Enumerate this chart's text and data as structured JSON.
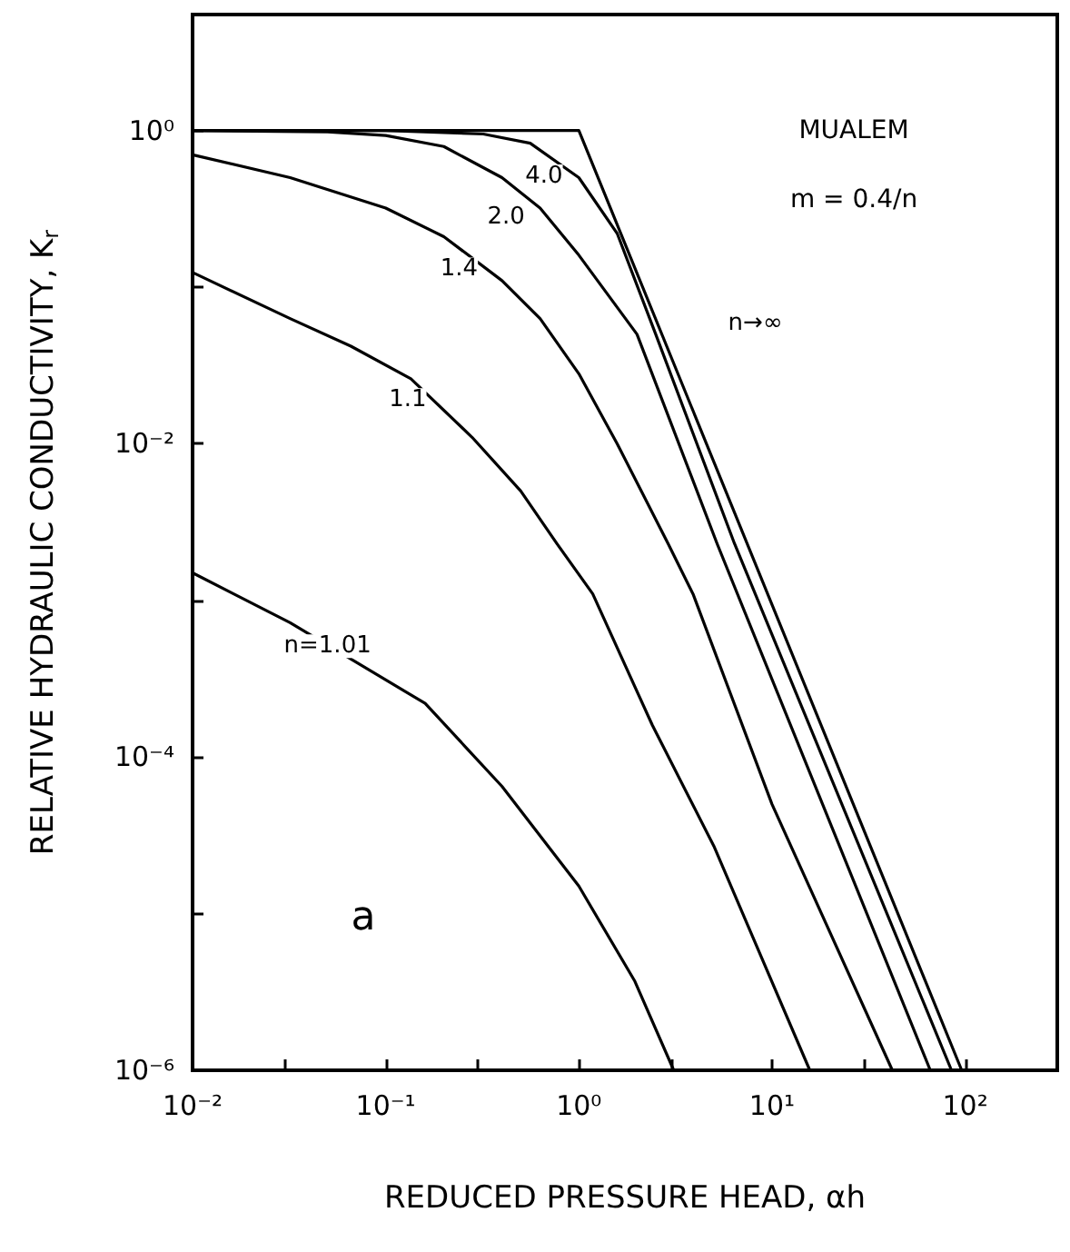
{
  "chart_data": {
    "type": "line",
    "xlabel": "REDUCED PRESSURE HEAD, αh",
    "ylabel": "RELATIVE HYDRAULIC CONDUCTIVITY, K$_{r}$",
    "log": "xy",
    "grid": false,
    "marker": "none",
    "line_style": "solid",
    "xlim": [
      0.01,
      300
    ],
    "ylim": [
      1e-06,
      5.5
    ],
    "xticks": [
      {
        "value": 0.01,
        "label": "10⁻²"
      },
      {
        "value": 0.03,
        "label": null
      },
      {
        "value": 0.1,
        "label": "10⁻¹"
      },
      {
        "value": 0.3,
        "label": null
      },
      {
        "value": 1,
        "label": "10⁰"
      },
      {
        "value": 3,
        "label": null
      },
      {
        "value": 10,
        "label": "10¹"
      },
      {
        "value": 30,
        "label": null
      },
      {
        "value": 100,
        "label": "10²"
      }
    ],
    "yticks": [
      {
        "value": 1e-06,
        "label": "10⁻⁶"
      },
      {
        "value": 1e-05,
        "label": null
      },
      {
        "value": 0.0001,
        "label": "10⁻⁴"
      },
      {
        "value": 0.001,
        "label": null
      },
      {
        "value": 0.01,
        "label": "10⁻²"
      },
      {
        "value": 0.1,
        "label": null
      },
      {
        "value": 1,
        "label": "10⁰"
      }
    ],
    "series": [
      {
        "color": "#000000",
        "x": [
          0.01,
          1,
          96
        ],
        "values": [
          1,
          1,
          1e-06
        ]
      },
      {
        "color": "#000000",
        "x": [
          0.01,
          0.1,
          0.32,
          0.56,
          1,
          1.58,
          2.5,
          6.4,
          85
        ],
        "values": [
          1,
          1,
          0.95,
          0.83,
          0.5,
          0.22,
          0.05,
          0.0023,
          1e-06
        ]
      },
      {
        "color": "#000000",
        "x": [
          0.01,
          0.05,
          0.1,
          0.2,
          0.4,
          0.63,
          1,
          2,
          5.2,
          66
        ],
        "values": [
          1,
          0.98,
          0.93,
          0.79,
          0.5,
          0.32,
          0.16,
          0.05,
          0.0023,
          1e-06
        ]
      },
      {
        "color": "#000000",
        "x": [
          0.01,
          0.032,
          0.1,
          0.2,
          0.4,
          0.63,
          1,
          1.58,
          2.9,
          3.9,
          10,
          42
        ],
        "values": [
          0.7,
          0.5,
          0.32,
          0.21,
          0.11,
          0.063,
          0.028,
          0.01,
          0.0023,
          0.0011,
          5e-05,
          1e-06
        ]
      },
      {
        "color": "#000000",
        "x": [
          0.01,
          0.032,
          0.066,
          0.135,
          0.28,
          0.5,
          0.77,
          1.18,
          2.4,
          5,
          15.7
        ],
        "values": [
          0.124,
          0.063,
          0.042,
          0.026,
          0.011,
          0.005,
          0.0023,
          0.0011,
          0.00016,
          2.7e-05,
          1e-06
        ]
      },
      {
        "color": "#000000",
        "x": [
          0.01,
          0.032,
          0.16,
          0.4,
          1,
          1.95,
          3.1
        ],
        "values": [
          0.0015,
          0.00072,
          0.00022,
          6.5e-05,
          1.5e-05,
          3.7e-06,
          1e-06
        ]
      }
    ],
    "annotations": [
      {
        "text": "n→∞",
        "x": 8.2,
        "y": 0.059
      },
      {
        "text": "4.0",
        "x": 0.66,
        "y": 0.51
      },
      {
        "text": "2.0",
        "x": 0.42,
        "y": 0.28
      },
      {
        "text": "1.4",
        "x": 0.24,
        "y": 0.13
      },
      {
        "text": "1.1",
        "x": 0.13,
        "y": 0.019
      },
      {
        "text": "n=1.01",
        "x": 0.05,
        "y": 0.00051
      },
      "MUALEM",
      "m = 0.4/n",
      "a"
    ]
  }
}
